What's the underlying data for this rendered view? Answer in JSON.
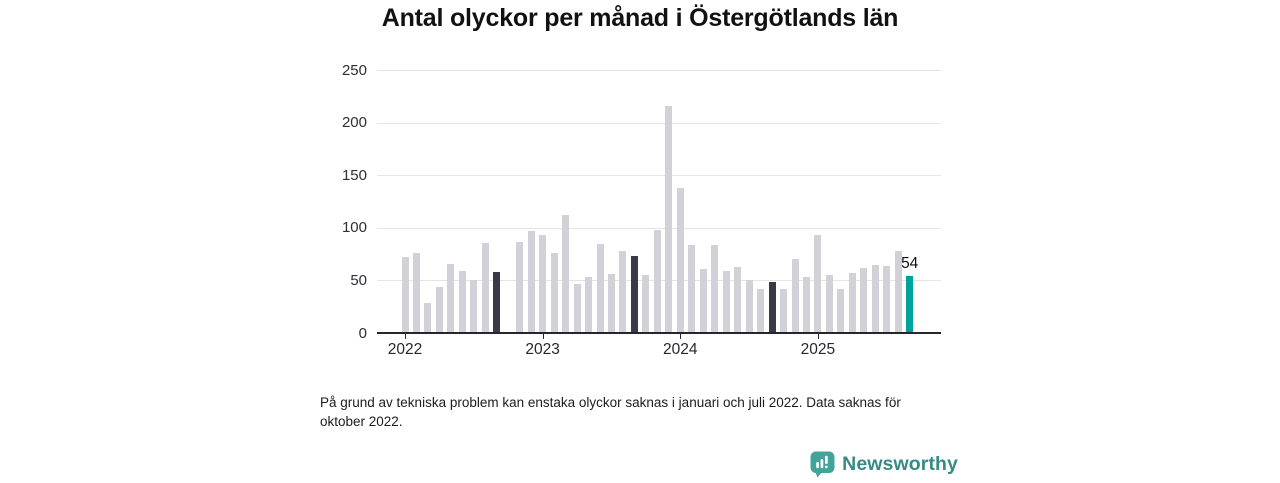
{
  "chart_data": {
    "type": "bar",
    "title": "Antal olyckor per månad i Östergötlands län",
    "x": [
      "2022-01",
      "2022-02",
      "2022-03",
      "2022-04",
      "2022-05",
      "2022-06",
      "2022-07",
      "2022-08",
      "2022-09",
      "2022-10",
      "2022-11",
      "2022-12",
      "2023-01",
      "2023-02",
      "2023-03",
      "2023-04",
      "2023-05",
      "2023-06",
      "2023-07",
      "2023-08",
      "2023-09",
      "2023-10",
      "2023-11",
      "2023-12",
      "2024-01",
      "2024-02",
      "2024-03",
      "2024-04",
      "2024-05",
      "2024-06",
      "2024-07",
      "2024-08",
      "2024-09",
      "2024-10",
      "2024-11",
      "2024-12",
      "2025-01",
      "2025-02",
      "2025-03",
      "2025-04",
      "2025-05",
      "2025-06",
      "2025-07",
      "2025-08",
      "2025-09"
    ],
    "values": [
      72,
      76,
      29,
      44,
      66,
      59,
      50,
      86,
      58,
      null,
      87,
      97,
      93,
      76,
      112,
      47,
      53,
      85,
      56,
      78,
      73,
      55,
      98,
      216,
      138,
      84,
      61,
      84,
      59,
      63,
      50,
      42,
      49,
      42,
      70,
      53,
      93,
      55,
      42,
      57,
      62,
      65,
      64,
      78,
      54
    ],
    "missing_months": [
      "2022-10"
    ],
    "highlighted_months": [
      "2022-09",
      "2023-09",
      "2024-09"
    ],
    "current_month": "2025-09",
    "annotations": [
      {
        "month": "2025-09",
        "text": "54"
      }
    ],
    "x_ticks": [
      {
        "month": "2022-01",
        "label": "2022"
      },
      {
        "month": "2023-01",
        "label": "2023"
      },
      {
        "month": "2024-01",
        "label": "2024"
      },
      {
        "month": "2025-01",
        "label": "2025"
      }
    ],
    "y_ticks": [
      0,
      50,
      100,
      150,
      200,
      250
    ],
    "ylim": [
      0,
      250
    ],
    "grid": "horizontal",
    "legend_position": "none"
  },
  "footnote": "På grund av tekniska problem kan enstaka olyckor saknas i januari och juli 2022. Data saknas för oktober 2022.",
  "branding": {
    "name": "Newsworthy",
    "icon": "bar-chart-speech-bubble-icon"
  },
  "colors": {
    "bar_default": "#d2d1d8",
    "bar_highlight": "#3a3a46",
    "bar_current": "#00a39a",
    "gridline": "#e4e4e7",
    "axis": "#26262e",
    "brand_icon": "#43a398",
    "brand_text": "#388a84"
  }
}
